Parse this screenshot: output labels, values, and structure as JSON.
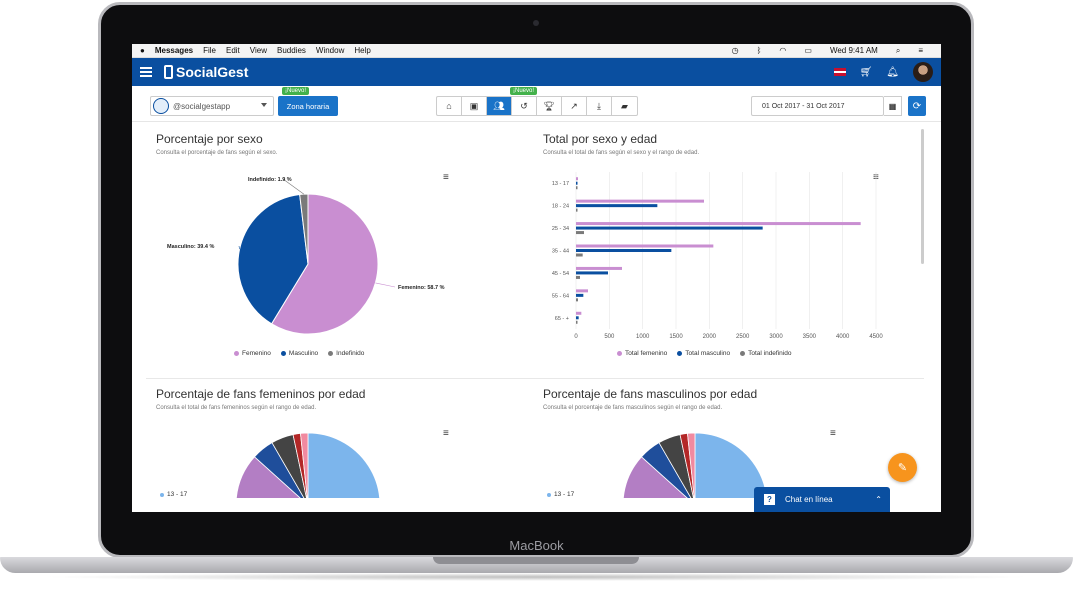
{
  "device": {
    "brand": "MacBook"
  },
  "macbar": {
    "apple": "",
    "app": "Messages",
    "menus": [
      "File",
      "Edit",
      "View",
      "Buddies",
      "Window",
      "Help"
    ],
    "clock": "Wed 9:41 AM"
  },
  "appbar": {
    "logo": "SocialGest"
  },
  "toolbar": {
    "account": "@socialgestapp",
    "zona_label": "Zona horaria",
    "nuevo_badge": "¡Nuevo!",
    "nuevo_badge2": "¡Nuevo!",
    "date_range": "01 Oct 2017 - 31 Oct 2017",
    "tabs": [
      "home-icon",
      "image-icon",
      "users-icon",
      "history-icon",
      "trophy-icon",
      "line-chart-icon",
      "download-icon",
      "folder-icon"
    ]
  },
  "panels": {
    "sexo": {
      "title": "Porcentaje por sexo",
      "subtitle": "Consulta el porcentaje de fans según el sexo."
    },
    "sexo_edad": {
      "title": "Total por sexo y edad",
      "subtitle": "Consulta el total de fans según el sexo y el rango de edad."
    },
    "femeninos": {
      "title": "Porcentaje de fans femeninos por edad",
      "subtitle": "Consulta el total de fans femeninos según el rango de edad."
    },
    "masculinos": {
      "title": "Porcentaje de fans masculinos por edad",
      "subtitle": "Consulta el porcentaje de fans masculinos según el rango de edad."
    }
  },
  "chat": {
    "label": "Chat en línea"
  },
  "colors": {
    "femenino": "#c98ed1",
    "masculino": "#0a4fa0",
    "indefinido": "#7a7a7a",
    "accent": "#1a73c8"
  },
  "chart_data": [
    {
      "type": "pie",
      "categories": [
        "Femenino",
        "Masculino",
        "Indefinido"
      ],
      "values": [
        58.7,
        39.4,
        1.9
      ],
      "data_labels": [
        "Femenino: 58.7 %",
        "Masculino: 39.4 %",
        "Indefinido: 1.9 %"
      ],
      "legend": "bottom"
    },
    {
      "type": "bar",
      "orientation": "horizontal",
      "categories": [
        "13 - 17",
        "18 - 24",
        "25 - 34",
        "35 - 44",
        "45 - 54",
        "55 - 64",
        "65 - +"
      ],
      "series": [
        {
          "name": "Total femenino",
          "values": [
            30,
            1920,
            4270,
            2060,
            690,
            180,
            80
          ]
        },
        {
          "name": "Total masculino",
          "values": [
            10,
            1220,
            2800,
            1430,
            480,
            110,
            40
          ]
        },
        {
          "name": "Total indefinido",
          "values": [
            5,
            10,
            120,
            100,
            60,
            30,
            20
          ]
        }
      ],
      "xticks": [
        "0",
        "500",
        "1000",
        "1500",
        "2000",
        "2500",
        "3000",
        "3500",
        "4000",
        "4500"
      ],
      "xlim": [
        0,
        4500
      ],
      "grid": true,
      "legend": "bottom"
    },
    {
      "type": "pie",
      "visible_legend": [
        "13 - 17"
      ]
    },
    {
      "type": "pie",
      "visible_legend": [
        "13 - 17"
      ]
    }
  ]
}
